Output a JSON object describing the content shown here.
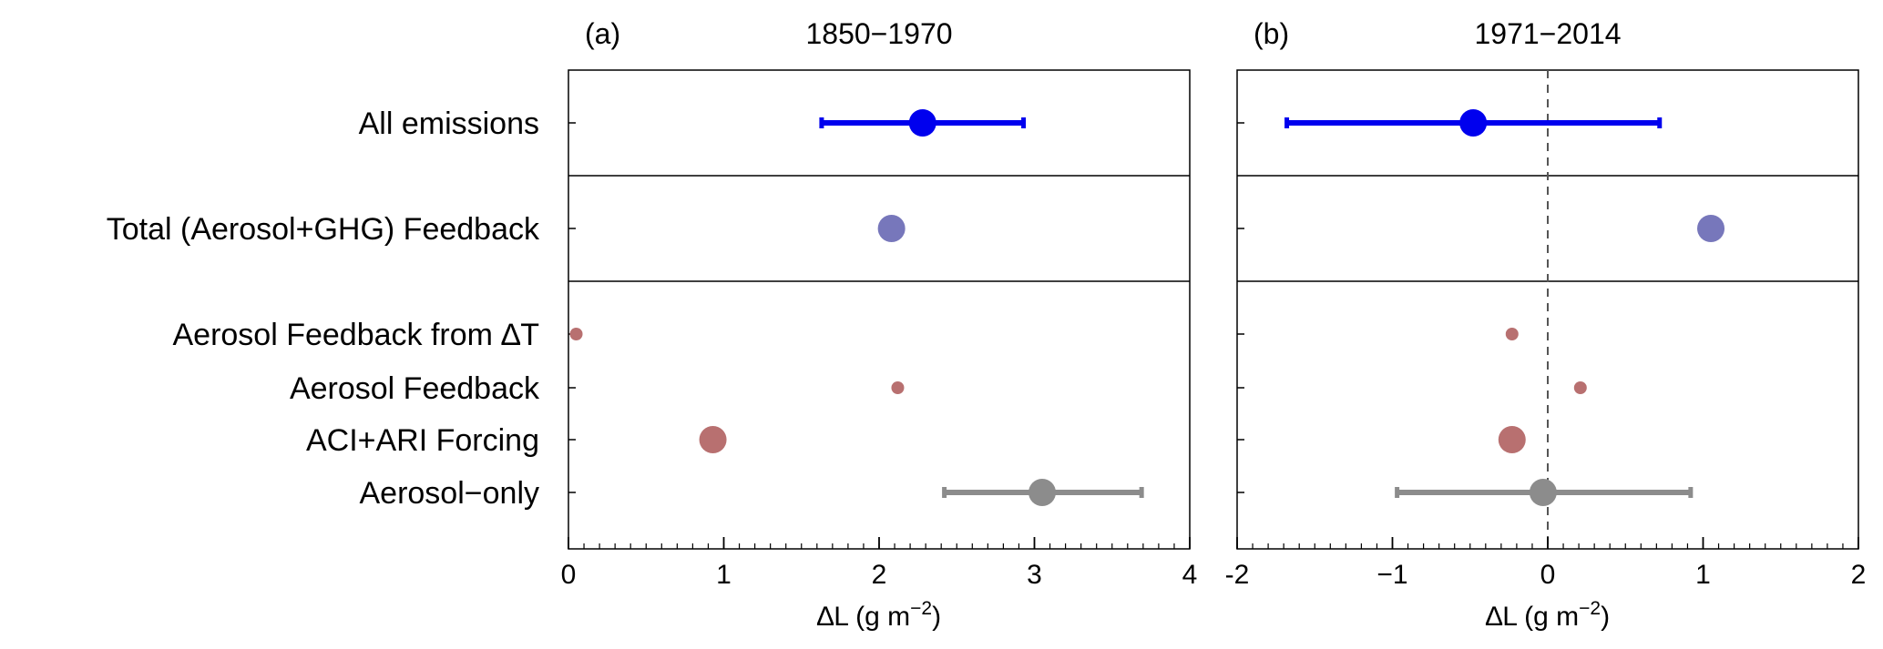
{
  "chart_data": {
    "type": "scatter",
    "row_labels": [
      "All emissions",
      "Total (Aerosol+GHG) Feedback",
      "Aerosol Feedback from ∆T",
      "Aerosol Feedback",
      "ACI+ARI Forcing",
      "Aerosol−only"
    ],
    "colors": {
      "all_emissions": "#0000ee",
      "total_feedback": "#7777bb",
      "aerosol_components": "#b87070",
      "aerosol_only": "#8c8c8c",
      "axis": "#000000",
      "zero_line": "#555555"
    },
    "panels": [
      {
        "letter": "(a)",
        "title": "1850−1970",
        "xlabel": "∆L (g m",
        "xlabel_sup": "−2",
        "xlabel_end": ")",
        "xlim": [
          0,
          4
        ],
        "xticks": [
          0,
          1,
          2,
          3,
          4
        ],
        "xtick_labels": [
          "0",
          "1",
          "2",
          "3",
          "4"
        ],
        "zero_line": false,
        "points": [
          {
            "row": 0,
            "x": 2.28,
            "err_low": 1.63,
            "err_high": 2.93,
            "size": "large",
            "color_key": "all_emissions"
          },
          {
            "row": 1,
            "x": 2.08,
            "size": "large",
            "color_key": "total_feedback"
          },
          {
            "row": 2,
            "x": 0.05,
            "size": "small",
            "color_key": "aerosol_components"
          },
          {
            "row": 3,
            "x": 2.12,
            "size": "small",
            "color_key": "aerosol_components"
          },
          {
            "row": 4,
            "x": 0.93,
            "size": "large",
            "color_key": "aerosol_components"
          },
          {
            "row": 5,
            "x": 3.05,
            "err_low": 2.42,
            "err_high": 3.69,
            "size": "large",
            "color_key": "aerosol_only"
          }
        ]
      },
      {
        "letter": "(b)",
        "title": "1971−2014",
        "xlabel": "∆L (g m",
        "xlabel_sup": "−2",
        "xlabel_end": ")",
        "xlim": [
          -2,
          2
        ],
        "xticks": [
          -2,
          -1,
          0,
          1,
          2
        ],
        "xtick_labels": [
          "-2",
          "−1",
          "0",
          "1",
          "2"
        ],
        "zero_line": true,
        "points": [
          {
            "row": 0,
            "x": -0.48,
            "err_low": -1.68,
            "err_high": 0.72,
            "size": "large",
            "color_key": "all_emissions"
          },
          {
            "row": 1,
            "x": 1.05,
            "size": "large",
            "color_key": "total_feedback"
          },
          {
            "row": 2,
            "x": -0.23,
            "size": "small",
            "color_key": "aerosol_components"
          },
          {
            "row": 3,
            "x": 0.21,
            "size": "small",
            "color_key": "aerosol_components"
          },
          {
            "row": 4,
            "x": -0.23,
            "size": "large",
            "color_key": "aerosol_components"
          },
          {
            "row": 5,
            "x": -0.03,
            "err_low": -0.97,
            "err_high": 0.92,
            "size": "large",
            "color_key": "aerosol_only"
          }
        ]
      }
    ]
  }
}
